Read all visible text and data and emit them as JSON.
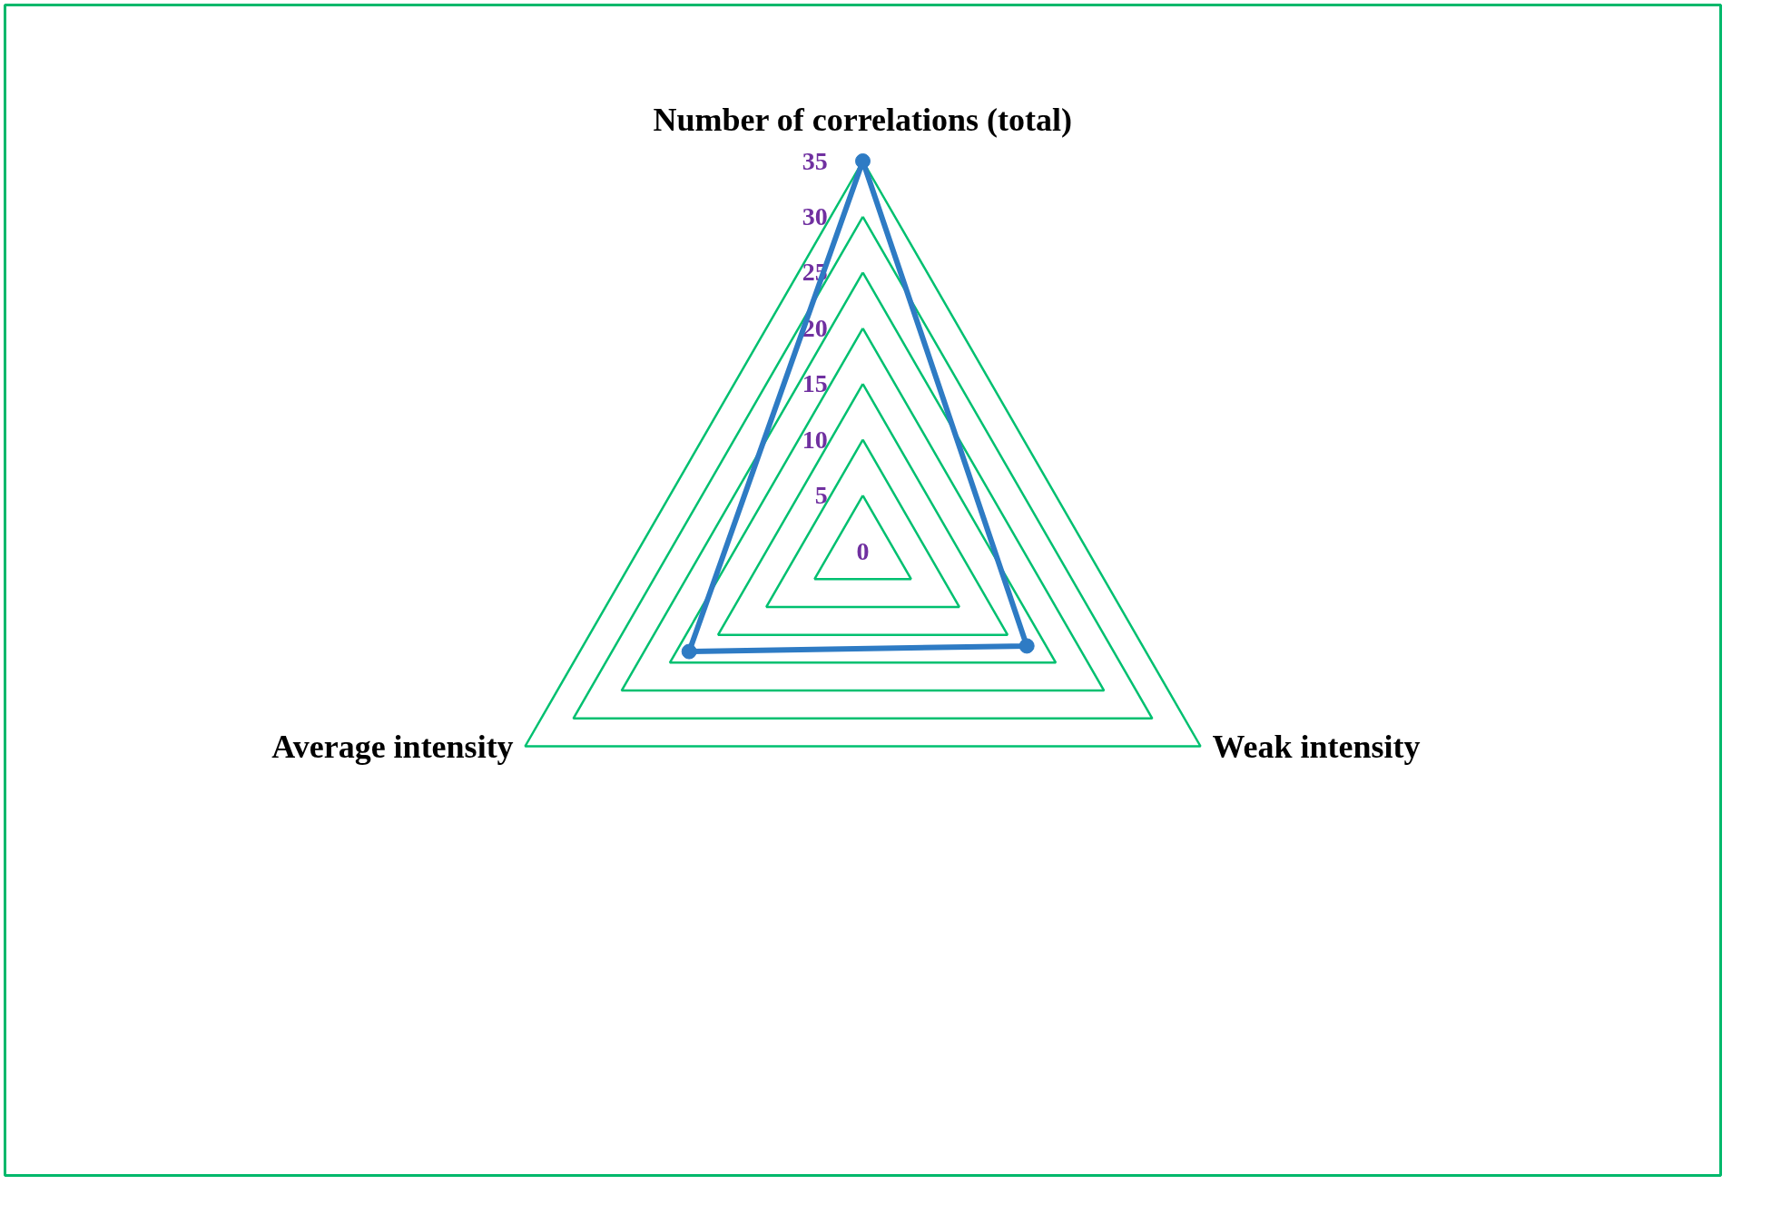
{
  "chart_data": {
    "type": "radar",
    "categories": [
      "Number of correlations (total)",
      "Weak intensity",
      "Average intensity"
    ],
    "series": [
      {
        "color": "#2e7bc4",
        "values": [
          35,
          17,
          18
        ]
      }
    ],
    "ylim": [
      0,
      35
    ],
    "yticks": [
      0,
      5,
      10,
      15,
      20,
      25,
      30,
      35
    ],
    "grid": true,
    "marker": "circle",
    "line_style": "solid"
  }
}
